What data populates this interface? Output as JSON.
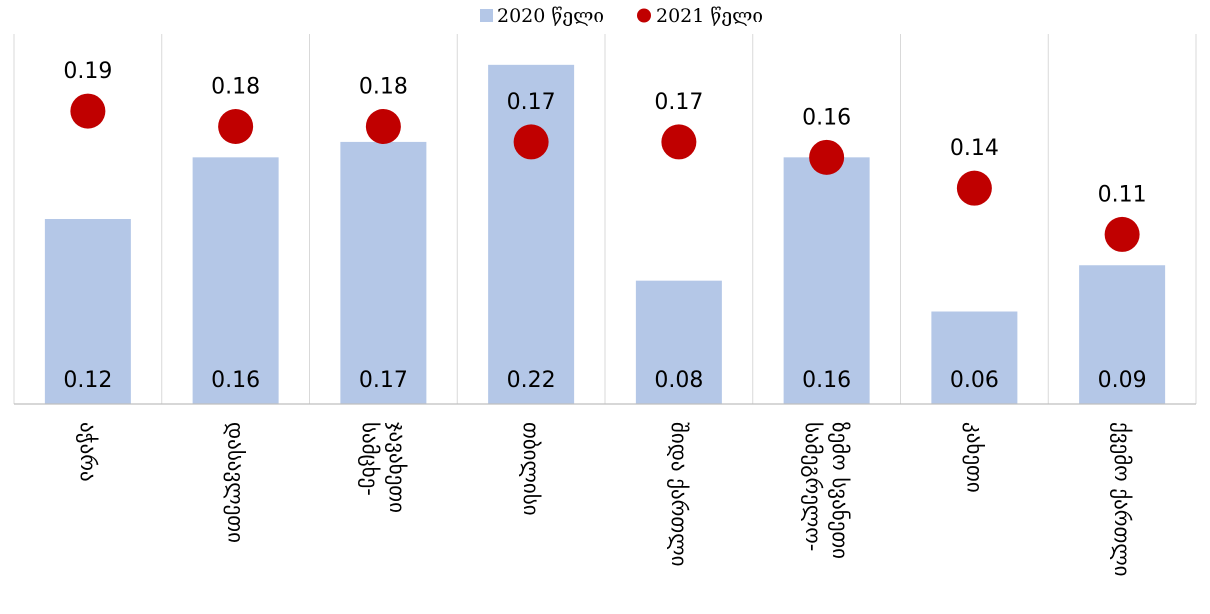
{
  "chart_data": {
    "type": "bar",
    "title": "",
    "xlabel": "",
    "ylabel": "",
    "ylim": [
      0,
      0.24
    ],
    "grid": "vertical separators between categories",
    "legend": {
      "placement": "top-center",
      "entries": [
        {
          "name": "2020 წელი",
          "marker": "square",
          "color": "#b4c7e7"
        },
        {
          "name": "2021 წელი",
          "marker": "circle",
          "color": "#c00000"
        }
      ]
    },
    "categories": [
      [
        "აჭარა"
      ],
      [
        "დასავლეთი"
      ],
      [
        "სამცხე-",
        "ჯავახეთი"
      ],
      [
        "თბილისი"
      ],
      [
        "შიდა ქართლი"
      ],
      [
        "სამეგრელო-",
        "ზემო სვანეთი"
      ],
      [
        "კახეთი"
      ],
      [
        "ქვემო ქართლი"
      ]
    ],
    "series": [
      {
        "name": "2020 წელი",
        "kind": "bar",
        "color": "#b4c7e7",
        "values": [
          0.12,
          0.16,
          0.17,
          0.22,
          0.08,
          0.16,
          0.06,
          0.09
        ],
        "labels": [
          "0.12",
          "0.16",
          "0.17",
          "0.22",
          "0.08",
          "0.16",
          "0.06",
          "0.09"
        ]
      },
      {
        "name": "2021 წელი",
        "kind": "marker",
        "color": "#c00000",
        "values": [
          0.19,
          0.18,
          0.18,
          0.17,
          0.17,
          0.16,
          0.14,
          0.11
        ],
        "labels": [
          "0.19",
          "0.18",
          "0.18",
          "0.17",
          "0.17",
          "0.16",
          "0.14",
          "0.11"
        ]
      }
    ]
  }
}
